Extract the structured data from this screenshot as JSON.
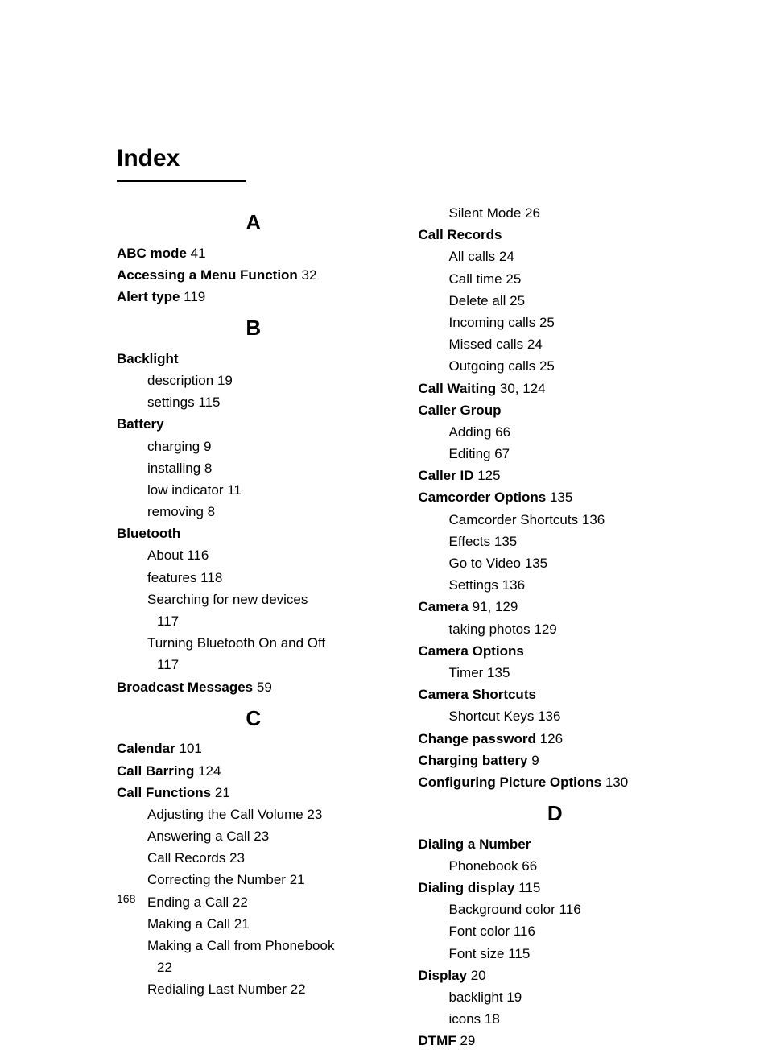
{
  "title": "Index",
  "pageNumber": "168",
  "left": {
    "sections": [
      {
        "letter": "A",
        "entries": [
          {
            "bold": "ABC mode",
            "page": "41"
          },
          {
            "bold": "Accessing a Menu Function",
            "page": "32"
          },
          {
            "bold": "Alert type",
            "page": "119"
          }
        ]
      },
      {
        "letter": "B",
        "entries": [
          {
            "bold": "Backlight",
            "subs": [
              {
                "text": "description",
                "page": "19"
              },
              {
                "text": "settings",
                "page": "115"
              }
            ]
          },
          {
            "bold": "Battery",
            "subs": [
              {
                "text": "charging",
                "page": "9"
              },
              {
                "text": "installing",
                "page": "8"
              },
              {
                "text": "low indicator",
                "page": "11"
              },
              {
                "text": "removing",
                "page": "8"
              }
            ]
          },
          {
            "bold": "Bluetooth",
            "subs": [
              {
                "text": "About",
                "page": "116"
              },
              {
                "text": "features",
                "page": "118"
              },
              {
                "text": "Searching for new devices",
                "page": "117",
                "wrap": true
              },
              {
                "text": "Turning Bluetooth On and Off",
                "page": "117",
                "wrap": true
              }
            ]
          },
          {
            "bold": "Broadcast Messages",
            "page": "59"
          }
        ]
      },
      {
        "letter": "C",
        "entries": [
          {
            "bold": "Calendar",
            "page": "101"
          },
          {
            "bold": "Call Barring",
            "page": "124"
          },
          {
            "bold": "Call Functions",
            "page": "21",
            "subs": [
              {
                "text": "Adjusting the Call Volume",
                "page": "23"
              },
              {
                "text": "Answering a Call",
                "page": "23"
              },
              {
                "text": "Call Records",
                "page": "23"
              },
              {
                "text": "Correcting the Number",
                "page": "21"
              },
              {
                "text": "Ending a Call",
                "page": "22"
              },
              {
                "text": "Making a Call",
                "page": "21"
              },
              {
                "text": "Making a Call from Phonebook",
                "page": "22",
                "wrap": true
              },
              {
                "text": "Redialing Last Number",
                "page": "22"
              }
            ]
          }
        ]
      }
    ]
  },
  "right": {
    "continuation": [
      {
        "text": "Silent Mode",
        "page": "26"
      }
    ],
    "sections": [
      {
        "entries": [
          {
            "bold": "Call Records",
            "subs": [
              {
                "text": "All calls",
                "page": "24"
              },
              {
                "text": "Call time",
                "page": "25"
              },
              {
                "text": "Delete all",
                "page": "25"
              },
              {
                "text": "Incoming calls",
                "page": "25"
              },
              {
                "text": "Missed calls",
                "page": "24"
              },
              {
                "text": "Outgoing calls",
                "page": "25"
              }
            ]
          },
          {
            "bold": "Call Waiting",
            "page": "30, 124"
          },
          {
            "bold": "Caller Group",
            "subs": [
              {
                "text": "Adding",
                "page": "66"
              },
              {
                "text": "Editing",
                "page": "67"
              }
            ]
          },
          {
            "bold": "Caller ID",
            "page": "125"
          },
          {
            "bold": "Camcorder Options",
            "page": "135",
            "subs": [
              {
                "text": "Camcorder Shortcuts",
                "page": "136"
              },
              {
                "text": "Effects",
                "page": "135"
              },
              {
                "text": "Go to Video",
                "page": "135"
              },
              {
                "text": "Settings",
                "page": "136"
              }
            ]
          },
          {
            "bold": "Camera",
            "page": "91, 129",
            "subs": [
              {
                "text": "taking photos",
                "page": "129"
              }
            ]
          },
          {
            "bold": "Camera Options",
            "subs": [
              {
                "text": "Timer",
                "page": "135"
              }
            ]
          },
          {
            "bold": "Camera Shortcuts",
            "subs": [
              {
                "text": "Shortcut Keys",
                "page": "136"
              }
            ]
          },
          {
            "bold": "Change password",
            "page": "126"
          },
          {
            "bold": "Charging battery",
            "page": "9"
          },
          {
            "bold": "Configuring Picture Options",
            "page": "130"
          }
        ]
      },
      {
        "letter": "D",
        "entries": [
          {
            "bold": "Dialing a Number",
            "subs": [
              {
                "text": "Phonebook",
                "page": "66"
              }
            ]
          },
          {
            "bold": "Dialing display",
            "page": "115",
            "subs": [
              {
                "text": "Background color",
                "page": "116"
              },
              {
                "text": "Font color",
                "page": "116"
              },
              {
                "text": "Font size",
                "page": "115"
              }
            ]
          },
          {
            "bold": "Display",
            "page": "20",
            "subs": [
              {
                "text": "backlight",
                "page": "19"
              },
              {
                "text": "icons",
                "page": "18"
              }
            ]
          },
          {
            "bold": "DTMF",
            "page": "29"
          }
        ]
      }
    ]
  }
}
